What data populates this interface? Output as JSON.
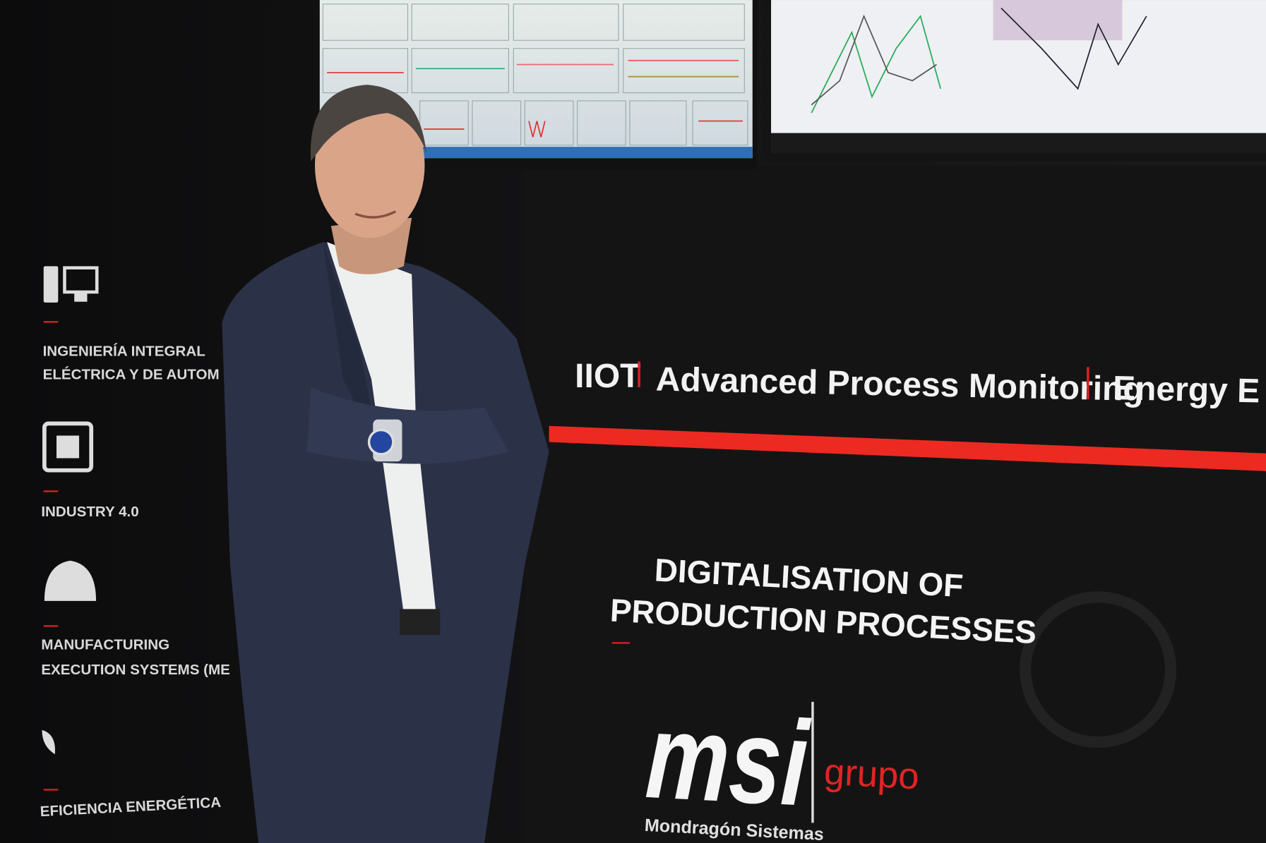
{
  "sidebar": {
    "items": [
      {
        "lines": [
          "INGENIERÍA INTEGRAL",
          "ELÉCTRICA Y DE AUTOM"
        ]
      },
      {
        "lines": [
          "INDUSTRY 4.0"
        ]
      },
      {
        "lines": [
          "MANUFACTURING",
          "EXECUTION SYSTEMS (ME"
        ]
      },
      {
        "lines": [
          "EFICIENCIA ENERGÉTICA"
        ]
      }
    ]
  },
  "banner": {
    "items": [
      "IIOT",
      "Advanced Process Monitoring",
      "Energy E"
    ]
  },
  "headline": {
    "lines": [
      "DIGITALISATION OF",
      "PRODUCTION PROCESSES"
    ]
  },
  "logo": {
    "mark": "msi",
    "group": "grupo",
    "company": "Mondragón Sistemas"
  }
}
